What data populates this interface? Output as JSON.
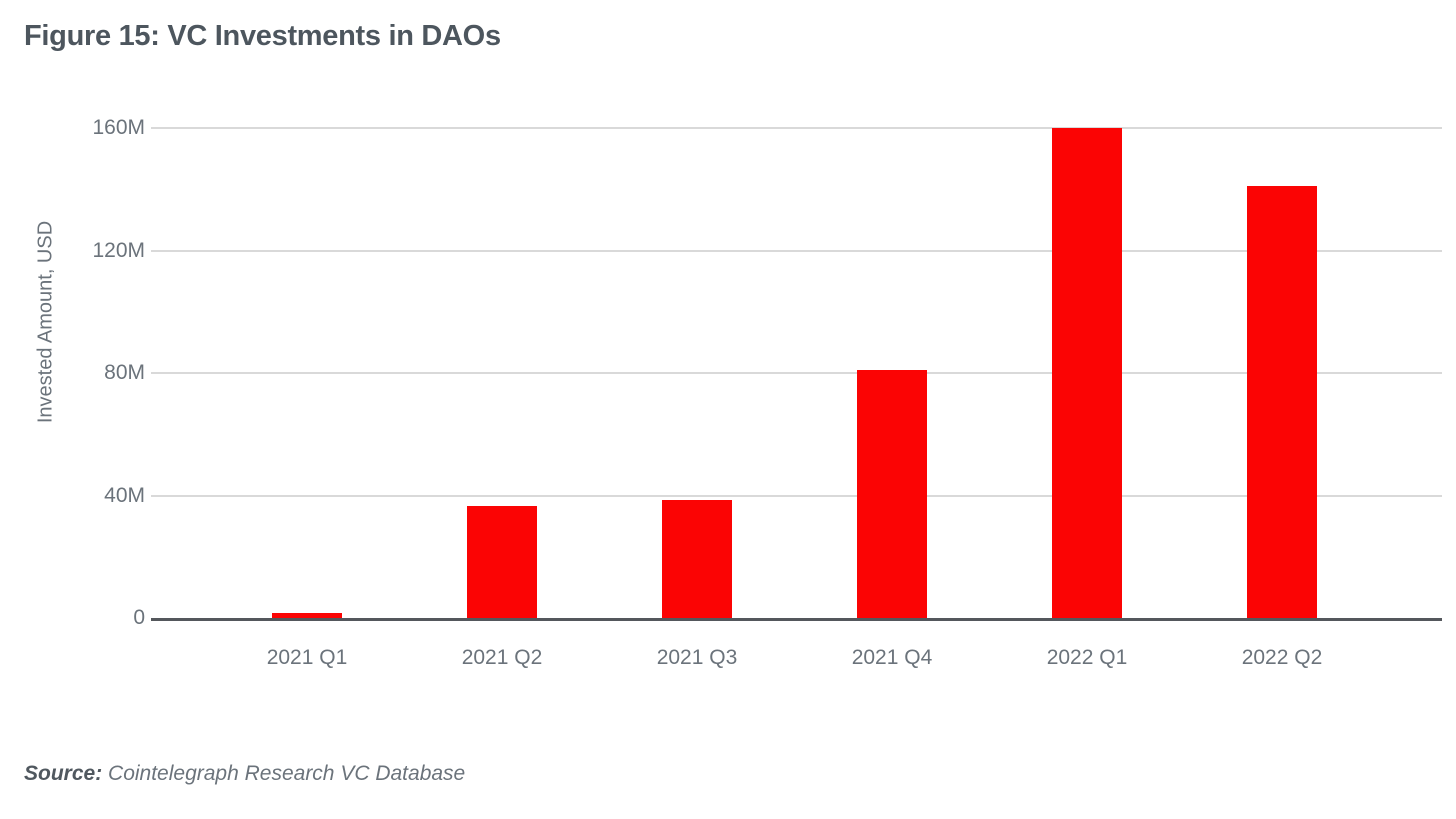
{
  "title": "Figure 15: VC Investments in DAOs",
  "source": {
    "label": "Source:",
    "text": " Cointelegraph Research VC Database"
  },
  "colors": {
    "bar": "#fb0404",
    "gridline": "#d9d9d9",
    "axis_line": "#54575c",
    "title_text": "#4d565e",
    "tick_text": "#6b737b",
    "axis_label_text": "#6b737b",
    "source_label_text": "#50585f",
    "source_text": "#6b737b"
  },
  "chart_data": {
    "type": "bar",
    "title": "Figure 15: VC Investments in DAOs",
    "categories": [
      "2021 Q1",
      "2021 Q2",
      "2021 Q3",
      "2021 Q4",
      "2022 Q1",
      "2022 Q2"
    ],
    "values": [
      1.5,
      36.5,
      38.5,
      81,
      160,
      141
    ],
    "xlabel": "",
    "ylabel": "Invested Amount, USD",
    "ylim": [
      0,
      160
    ],
    "yticks": [
      0,
      40,
      80,
      120,
      160
    ],
    "ytick_labels": [
      "0",
      "40M",
      "80M",
      "120M",
      "160M"
    ],
    "unit": "USD millions",
    "grid": true,
    "legend": false
  }
}
